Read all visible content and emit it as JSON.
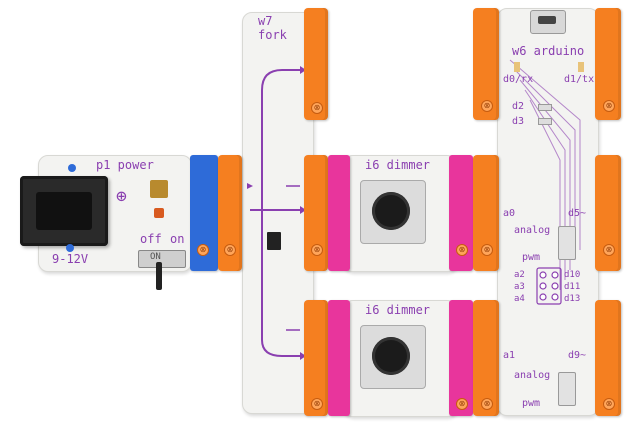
{
  "modules": {
    "power": {
      "label": "p1 power",
      "voltage": "9-12V",
      "switch_off": "off",
      "switch_on": "on",
      "switch_mark": "ON"
    },
    "fork": {
      "label": "w7 fork"
    },
    "dimmer_top": {
      "label": "i6 dimmer"
    },
    "dimmer_bottom": {
      "label": "i6 dimmer"
    },
    "arduino": {
      "label": "w6 arduino",
      "d0": "d0/rx",
      "d1": "d1/tx",
      "d2": "d2",
      "d3": "d3",
      "a0": "a0",
      "d5": "d5~",
      "analog_top": "analog",
      "pwm_top": "pwm",
      "a2": "a2",
      "a3": "a3",
      "a4": "a4",
      "d10": "d10",
      "d11": "d11",
      "d13": "d13",
      "a1": "a1",
      "d9": "d9~",
      "analog_bottom": "analog",
      "pwm_bottom": "pwm"
    }
  },
  "colors": {
    "power_connector": "#2e6bd8",
    "bit_connector": "#f57f20",
    "input_connector": "#e8359c",
    "trace": "#8a3fb0"
  },
  "icons": [
    "power-jack-icon",
    "dc-polarity-icon",
    "knob-icon",
    "switch-icon",
    "usb-port-icon",
    "screw-icon"
  ]
}
